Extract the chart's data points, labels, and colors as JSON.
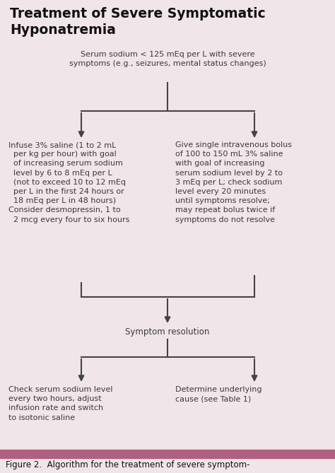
{
  "title_line1": "Treatment of Severe Symptomatic",
  "title_line2": "Hyponatremia",
  "background_color": "#f0e6ea",
  "text_color": "#3a3a3a",
  "arrow_color": "#444444",
  "line_color": "#444444",
  "footer_bar_color": "#b06080",
  "footer_text": "Figure 2.  Algorithm for the treatment of severe symptom-",
  "node_top": "Serum sodium < 125 mEq per L with severe\nsymptoms (e.g., seizures, mental status changes)",
  "node_left": "Infuse 3% saline (1 to 2 mL\n  per kg per hour) with goal\n  of increasing serum sodium\n  level by 6 to 8 mEq per L\n  (not to exceed 10 to 12 mEq\n  per L in the first 24 hours or\n  18 mEq per L in 48 hours)\nConsider desmopressin, 1 to\n  2 mcg every four to six hours",
  "node_right": "Give single intravenous bolus\nof 100 to 150 mL 3% saline\nwith goal of increasing\nserum sodium level by 2 to\n3 mEq per L; check sodium\nlevel every 20 minutes\nuntil symptoms resolve;\nmay repeat bolus twice if\nsymptoms do not resolve",
  "node_mid": "Symptom resolution",
  "node_bl": "Check serum sodium level\nevery two hours, adjust\ninfusion rate and switch\nto isotonic saline",
  "node_br": "Determine underlying\ncause (see Table 1)"
}
